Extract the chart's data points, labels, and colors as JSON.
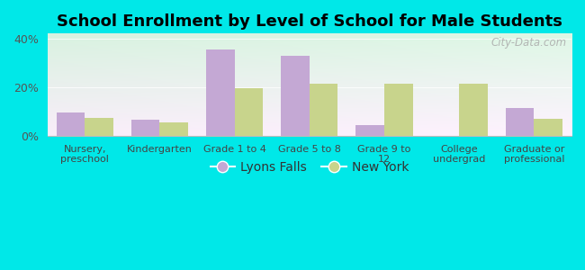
{
  "title": "School Enrollment by Level of School for Male Students",
  "categories": [
    "Nursery,\npreschool",
    "Kindergarten",
    "Grade 1 to 4",
    "Grade 5 to 8",
    "Grade 9 to\n12",
    "College\nundergrad",
    "Graduate or\nprofessional"
  ],
  "lyons_falls": [
    9.5,
    6.5,
    35.5,
    33.0,
    4.5,
    0,
    11.5
  ],
  "new_york": [
    7.5,
    5.5,
    19.5,
    21.5,
    21.5,
    21.5,
    7.0
  ],
  "lyons_falls_color": "#c4a8d4",
  "new_york_color": "#c8d48c",
  "background_color": "#00e8e8",
  "ylim_max": 42,
  "yticks": [
    0,
    20,
    40
  ],
  "ytick_labels": [
    "0%",
    "20%",
    "40%"
  ],
  "bar_width": 0.38,
  "legend_labels": [
    "Lyons Falls",
    "New York"
  ],
  "watermark": "City-Data.com",
  "title_fontsize": 13,
  "tick_fontsize": 8,
  "legend_fontsize": 10
}
